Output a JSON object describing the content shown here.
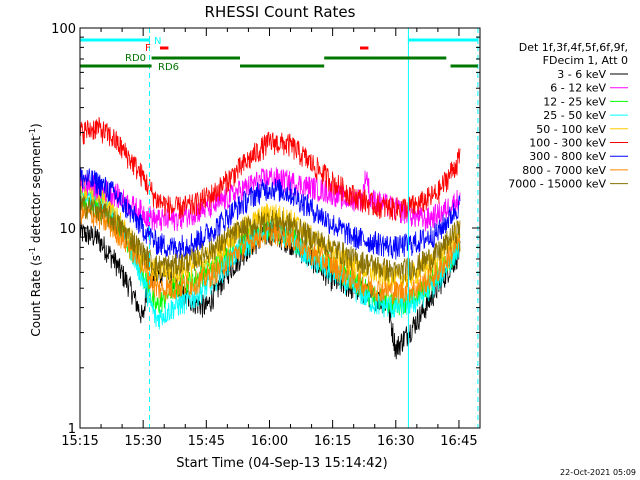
{
  "chart_data": {
    "type": "line",
    "title": "RHESSI Count Rates",
    "xlabel": "Start Time (04-Sep-13 15:14:42)",
    "ylabel_main": "Count Rate (s",
    "ylabel_sup1": "-1",
    "ylabel_mid": " detector segment",
    "ylabel_sup2": "-1",
    "ylabel_end": ")",
    "y_scale": "log",
    "ylim": [
      1,
      100
    ],
    "xlim_minutes": [
      0,
      95
    ],
    "x_ticks": [
      {
        "label": "15:15",
        "minute": 0
      },
      {
        "label": "15:30",
        "minute": 15
      },
      {
        "label": "15:45",
        "minute": 30
      },
      {
        "label": "16:00",
        "minute": 45
      },
      {
        "label": "16:15",
        "minute": 60
      },
      {
        "label": "16:30",
        "minute": 75
      },
      {
        "label": "16:45",
        "minute": 90
      }
    ],
    "y_ticks": [
      {
        "label": "1",
        "value": 1
      },
      {
        "label": "10",
        "value": 10
      },
      {
        "label": "100",
        "value": 100
      }
    ],
    "legend_header": [
      "Det 1f,3f,4f,5f,6f,9f,",
      "FDecim 1, Att 0"
    ],
    "legend_position": "right",
    "series": [
      {
        "name": "3 - 6 keV",
        "color": "#000000",
        "values": [
          [
            0,
            9.5
          ],
          [
            4,
            9.0
          ],
          [
            8,
            7.0
          ],
          [
            12,
            5.0
          ],
          [
            15,
            3.5
          ],
          [
            16,
            5.5
          ],
          [
            20,
            6.0
          ],
          [
            25,
            4.5
          ],
          [
            30,
            4.0
          ],
          [
            35,
            6.0
          ],
          [
            40,
            8.0
          ],
          [
            45,
            9.5
          ],
          [
            50,
            8.5
          ],
          [
            55,
            7.0
          ],
          [
            60,
            5.5
          ],
          [
            65,
            5.0
          ],
          [
            70,
            4.5
          ],
          [
            73,
            4.2
          ],
          [
            75,
            2.5
          ],
          [
            78,
            3.0
          ],
          [
            82,
            4.0
          ],
          [
            86,
            5.5
          ],
          [
            90,
            7.5
          ],
          [
            93,
            9.0
          ]
        ]
      },
      {
        "name": "6 - 12 keV",
        "color": "#ff00ff",
        "values": [
          [
            0,
            17
          ],
          [
            4,
            16
          ],
          [
            8,
            15
          ],
          [
            12,
            13
          ],
          [
            15,
            12
          ],
          [
            18,
            11
          ],
          [
            22,
            11
          ],
          [
            27,
            12
          ],
          [
            32,
            13
          ],
          [
            37,
            15
          ],
          [
            42,
            17
          ],
          [
            45,
            18
          ],
          [
            50,
            17
          ],
          [
            55,
            16
          ],
          [
            60,
            15
          ],
          [
            63,
            14
          ],
          [
            67,
            14
          ],
          [
            68,
            19
          ],
          [
            69,
            14
          ],
          [
            73,
            13
          ],
          [
            77,
            12
          ],
          [
            82,
            11
          ],
          [
            86,
            12
          ],
          [
            90,
            14
          ],
          [
            93,
            16
          ]
        ]
      },
      {
        "name": "12 - 25 keV",
        "color": "#00ff00",
        "values": [
          [
            0,
            14
          ],
          [
            4,
            13
          ],
          [
            8,
            11
          ],
          [
            12,
            8
          ],
          [
            15,
            6
          ],
          [
            18,
            4
          ],
          [
            22,
            5
          ],
          [
            27,
            5.5
          ],
          [
            32,
            6.5
          ],
          [
            37,
            8
          ],
          [
            42,
            9.5
          ],
          [
            45,
            10
          ],
          [
            50,
            9
          ],
          [
            55,
            7.5
          ],
          [
            60,
            6.5
          ],
          [
            65,
            5.5
          ],
          [
            70,
            4.5
          ],
          [
            75,
            4.2
          ],
          [
            80,
            4.5
          ],
          [
            85,
            6
          ],
          [
            90,
            8
          ],
          [
            93,
            11
          ]
        ]
      },
      {
        "name": "25 - 50 keV",
        "color": "#00ffff",
        "values": [
          [
            0,
            15
          ],
          [
            4,
            14
          ],
          [
            8,
            12
          ],
          [
            12,
            8
          ],
          [
            15,
            5.5
          ],
          [
            18,
            3.5
          ],
          [
            22,
            4
          ],
          [
            27,
            4.5
          ],
          [
            32,
            5.5
          ],
          [
            37,
            7.5
          ],
          [
            42,
            9
          ],
          [
            45,
            10
          ],
          [
            50,
            9
          ],
          [
            55,
            7
          ],
          [
            60,
            6
          ],
          [
            65,
            5
          ],
          [
            70,
            4.2
          ],
          [
            75,
            4
          ],
          [
            80,
            4.3
          ],
          [
            85,
            5.5
          ],
          [
            90,
            8
          ],
          [
            93,
            12
          ]
        ]
      },
      {
        "name": "50 - 100 keV",
        "color": "#ffcc00",
        "values": [
          [
            0,
            16
          ],
          [
            4,
            15
          ],
          [
            8,
            12
          ],
          [
            12,
            9
          ],
          [
            15,
            7
          ],
          [
            18,
            6
          ],
          [
            22,
            6
          ],
          [
            27,
            6.5
          ],
          [
            32,
            7.5
          ],
          [
            37,
            9.5
          ],
          [
            42,
            11
          ],
          [
            45,
            12
          ],
          [
            50,
            11
          ],
          [
            55,
            9
          ],
          [
            60,
            7.5
          ],
          [
            65,
            6.5
          ],
          [
            70,
            6
          ],
          [
            75,
            5.5
          ],
          [
            80,
            6
          ],
          [
            85,
            7
          ],
          [
            90,
            9.5
          ],
          [
            93,
            13
          ]
        ]
      },
      {
        "name": "100 - 300 keV",
        "color": "#ff0000",
        "values": [
          [
            0,
            30
          ],
          [
            4,
            32
          ],
          [
            8,
            28
          ],
          [
            12,
            22
          ],
          [
            15,
            18
          ],
          [
            18,
            14
          ],
          [
            22,
            12.5
          ],
          [
            27,
            13
          ],
          [
            32,
            15
          ],
          [
            37,
            19
          ],
          [
            42,
            24
          ],
          [
            45,
            27
          ],
          [
            50,
            26
          ],
          [
            55,
            21
          ],
          [
            60,
            17
          ],
          [
            65,
            14.5
          ],
          [
            70,
            13
          ],
          [
            75,
            12.5
          ],
          [
            80,
            13
          ],
          [
            85,
            15
          ],
          [
            90,
            22
          ],
          [
            93,
            30
          ]
        ]
      },
      {
        "name": "300 - 800 keV",
        "color": "#0000ff",
        "values": [
          [
            0,
            18
          ],
          [
            4,
            17
          ],
          [
            8,
            15
          ],
          [
            12,
            12
          ],
          [
            15,
            10
          ],
          [
            18,
            8.5
          ],
          [
            22,
            8
          ],
          [
            27,
            8.5
          ],
          [
            32,
            10
          ],
          [
            37,
            12.5
          ],
          [
            42,
            15
          ],
          [
            45,
            16
          ],
          [
            50,
            15
          ],
          [
            55,
            12.5
          ],
          [
            60,
            10.5
          ],
          [
            65,
            9
          ],
          [
            70,
            8.5
          ],
          [
            75,
            8
          ],
          [
            80,
            8.5
          ],
          [
            85,
            9.5
          ],
          [
            90,
            13
          ],
          [
            93,
            18
          ]
        ]
      },
      {
        "name": "800 - 7000 keV",
        "color": "#ff8800",
        "values": [
          [
            0,
            12
          ],
          [
            4,
            11.5
          ],
          [
            8,
            10
          ],
          [
            12,
            8
          ],
          [
            15,
            6.5
          ],
          [
            18,
            5
          ],
          [
            22,
            5
          ],
          [
            27,
            5.3
          ],
          [
            32,
            6
          ],
          [
            37,
            7.5
          ],
          [
            42,
            9
          ],
          [
            45,
            9.5
          ],
          [
            50,
            9
          ],
          [
            55,
            7.5
          ],
          [
            60,
            6.5
          ],
          [
            65,
            5.5
          ],
          [
            70,
            5
          ],
          [
            75,
            4.8
          ],
          [
            80,
            5
          ],
          [
            85,
            6
          ],
          [
            90,
            8.5
          ],
          [
            93,
            11
          ]
        ]
      },
      {
        "name": "7000 - 15000 keV",
        "color": "#887000",
        "values": [
          [
            0,
            13
          ],
          [
            4,
            12.5
          ],
          [
            8,
            11
          ],
          [
            12,
            9
          ],
          [
            15,
            7.5
          ],
          [
            18,
            6.5
          ],
          [
            22,
            6.5
          ],
          [
            27,
            7
          ],
          [
            32,
            8
          ],
          [
            37,
            9.5
          ],
          [
            42,
            10.5
          ],
          [
            45,
            11
          ],
          [
            50,
            10.5
          ],
          [
            55,
            9
          ],
          [
            60,
            8
          ],
          [
            65,
            7
          ],
          [
            70,
            6.5
          ],
          [
            75,
            6
          ],
          [
            80,
            6.5
          ],
          [
            85,
            7.5
          ],
          [
            90,
            10
          ],
          [
            93,
            12.5
          ]
        ]
      }
    ],
    "vertical_markers": [
      {
        "minute": 0,
        "style": "solid",
        "color": "#00ffff"
      },
      {
        "minute": 16.5,
        "style": "dashed",
        "color": "#00ffff"
      },
      {
        "minute": 78,
        "style": "solid",
        "color": "#00ffff"
      },
      {
        "minute": 94.5,
        "style": "dashed",
        "color": "#00ffff"
      }
    ],
    "annotations": {
      "N_label": "N",
      "F_label": "F",
      "RD0_label": "RD0",
      "RD6_label": "RD6"
    },
    "footer_date": "22-Oct-2021 05:09"
  }
}
